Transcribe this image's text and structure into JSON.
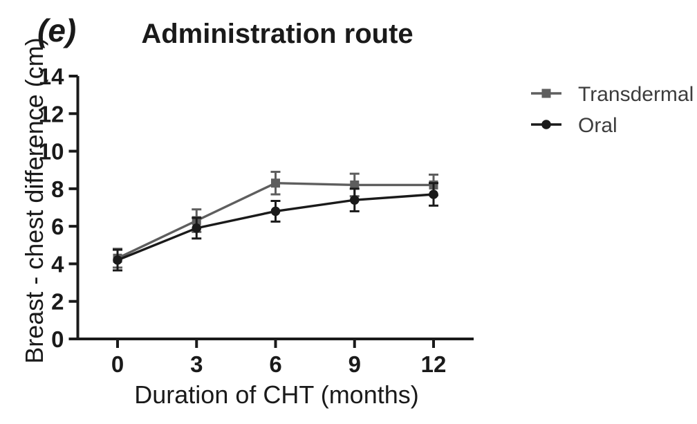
{
  "figure": {
    "panel_label": "(e)",
    "background_color": "#ffffff"
  },
  "chart_data": {
    "type": "line",
    "title": "Administration route",
    "xlabel": "Duration of CHT (months)",
    "ylabel": "Breast - chest difference (cm)",
    "x": [
      0,
      3,
      6,
      9,
      12
    ],
    "xticks": [
      "0",
      "3",
      "6",
      "9",
      "12"
    ],
    "yticks": [
      "0",
      "2",
      "4",
      "6",
      "8",
      "10",
      "12",
      "14"
    ],
    "xlim": [
      -1.6,
      13.6
    ],
    "ylim": [
      0,
      14
    ],
    "grid": false,
    "error_bars": true,
    "legend_position": "right-outside",
    "series": [
      {
        "name": "Transdermal",
        "marker": "square",
        "color": "#5e5e5e",
        "values": [
          4.3,
          6.3,
          8.3,
          8.2,
          8.2
        ],
        "errors": [
          0.5,
          0.6,
          0.6,
          0.6,
          0.55
        ]
      },
      {
        "name": "Oral",
        "marker": "circle",
        "color": "#1a1a1a",
        "values": [
          4.2,
          5.9,
          6.8,
          7.4,
          7.7
        ],
        "errors": [
          0.55,
          0.55,
          0.55,
          0.6,
          0.6
        ]
      }
    ],
    "axis_color": "#1a1a1a",
    "tick_text_color": "#1a1a1a",
    "legend_text_color": "#3d3d3d"
  }
}
